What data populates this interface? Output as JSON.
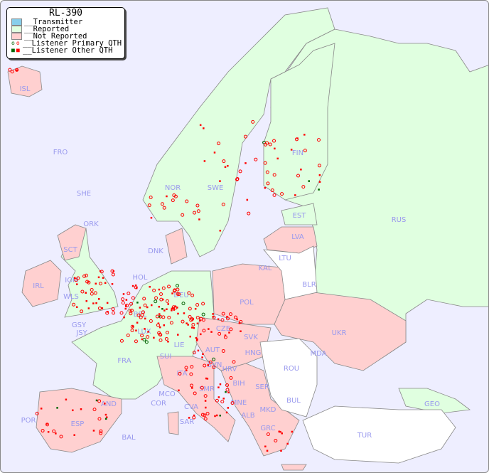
{
  "legend": {
    "title": "RL-390",
    "items": [
      {
        "label": "__Transmitter",
        "color": "#87ceeb"
      },
      {
        "label": "__Reported",
        "color": "#e0ffe0"
      },
      {
        "label": "__Not Reported",
        "color": "#ffd0d0"
      },
      {
        "label": "__Listener Primary QTH",
        "colors": [
          "#006400",
          "#ff0000"
        ]
      },
      {
        "label": "__Listener Other QTH",
        "colors": [
          "#006400",
          "#ff0000"
        ]
      }
    ]
  },
  "colors": {
    "sea": "#eeeeff",
    "reported": "#e0ffe0",
    "not_reported": "#ffd0d0",
    "no_data": "#ffffff",
    "label": "#9999ee"
  },
  "countries": [
    "ISL",
    "FRO",
    "SHE",
    "ORK",
    "NOR",
    "SWE",
    "FIN",
    "EST",
    "LVA",
    "LTU",
    "RUS",
    "KAL",
    "BLR",
    "DNK",
    "HOL",
    "SCT",
    "IOM",
    "IRL",
    "WLS",
    "GSY",
    "JSY",
    "BEL",
    "DEU",
    "POL",
    "LUX",
    "CZE",
    "SVK",
    "UKR",
    "FRA",
    "SUI",
    "LIE",
    "AUT",
    "HNG",
    "MDA",
    "SVN",
    "HRV",
    "ROU",
    "ITA",
    "BIH",
    "SER",
    "MCO",
    "COR",
    "SMR",
    "BUL",
    "GEO",
    "AND",
    "MNE",
    "CVA",
    "MKD",
    "ALB",
    "POR",
    "ESP",
    "SAR",
    "BAL",
    "GRC",
    "TUR"
  ]
}
